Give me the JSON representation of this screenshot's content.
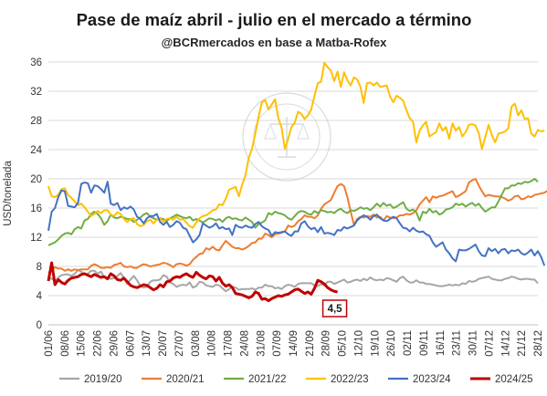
{
  "chart_data": {
    "type": "line",
    "title": "Pase de maíz abril - julio en el mercado a término",
    "subtitle": "@BCRmercados en base a Matba-Rofex",
    "ylabel": "USD/tonelada",
    "xlabel": "",
    "ylim": [
      0,
      36
    ],
    "yticks": [
      0,
      4,
      8,
      12,
      16,
      20,
      24,
      28,
      32,
      36
    ],
    "grid": "horizontal",
    "legend": "bottom",
    "x_ticks": [
      "01/06",
      "08/06",
      "15/06",
      "22/06",
      "29/06",
      "06/07",
      "13/07",
      "20/07",
      "27/07",
      "03/08",
      "10/08",
      "17/08",
      "24/08",
      "31/08",
      "07/09",
      "14/09",
      "21/09",
      "28/09",
      "05/10",
      "12/10",
      "19/10",
      "26/10",
      "02/11",
      "09/11",
      "16/11",
      "23/11",
      "30/11",
      "07/12",
      "14/12",
      "21/12",
      "28/12"
    ],
    "annotation": {
      "label": "4,5",
      "x": "07/09",
      "y": 4.5,
      "color": "#c00000"
    },
    "series": [
      {
        "name": "2019/20",
        "color": "#a6a6a6",
        "width": 2,
        "values": [
          6.5,
          6.3,
          6,
          6.5,
          6.8,
          6.9,
          6.9,
          6.7,
          7,
          7.5,
          7.3,
          6.9,
          7,
          7.4,
          7.4,
          7,
          7.3,
          6.5,
          6.4,
          6.3,
          6.4,
          6.7,
          7.1,
          6.4,
          5.6,
          6.2,
          6.7,
          6.1,
          5.3,
          5.1,
          5.2,
          5.9,
          6.1,
          6.1,
          6.2,
          6.8,
          6.6,
          5.8,
          5.6,
          5.2,
          5.4,
          5.5,
          5.4,
          5.8,
          5.1,
          5.3,
          5.9,
          5.8,
          5.4,
          5.3,
          5.2,
          5.5,
          5.4,
          5,
          4.6,
          4.9,
          5.2,
          5.1,
          4.8,
          4.9,
          4.9,
          4.9,
          5,
          4.8,
          5.1,
          5.1,
          5.5,
          5.3,
          5.3,
          5,
          5.1,
          4.9,
          5.3,
          5.5,
          5.4,
          5.2,
          5.6,
          5.7,
          5.7,
          5.7,
          5.7,
          5.4,
          5.3,
          5.6,
          5.4,
          5.9,
          5.9,
          5.6,
          5.8,
          6,
          6.2,
          5.8,
          5.9,
          6.1,
          6.2,
          6,
          6.3,
          6.1,
          6.5,
          6.2,
          6.1,
          6.2,
          6.1,
          6.4,
          6.3,
          6.1,
          5.9,
          6.4,
          6.6,
          6.1,
          5.8,
          5.8,
          6.1,
          5.8,
          5.8,
          5.6,
          5.6,
          5.5,
          5.4,
          5.3,
          5.3,
          5.4,
          5.5,
          5.4,
          5.5,
          5.4,
          5.7,
          5.6,
          6,
          5.9,
          6,
          6.3,
          6.4,
          6.5,
          6.6,
          6.3,
          6.2,
          6.1,
          6.1,
          6.3,
          6.4,
          6.6,
          6.5,
          6.3,
          6.2,
          6.3,
          6.3,
          6.2,
          6.2,
          5.7
        ]
      },
      {
        "name": "2020/21",
        "color": "#ed7d31",
        "width": 2,
        "values": [
          7.1,
          7.5,
          7.9,
          7.7,
          7.7,
          7.4,
          7.6,
          7.4,
          7.6,
          7.5,
          7.6,
          7.6,
          7.6,
          8.1,
          8.3,
          8.1,
          7.8,
          7.8,
          7.9,
          7.8,
          8.2,
          8.3,
          8.5,
          8,
          7.9,
          8,
          7.8,
          7.8,
          8.1,
          8.3,
          8.2,
          8,
          8.1,
          8.2,
          8.3,
          8.5,
          8.4,
          8.2,
          7.9,
          8.3,
          8.4,
          8.3,
          8.1,
          8.3,
          8.9,
          9.3,
          9.7,
          9.8,
          10.5,
          10.3,
          10.7,
          10.3,
          10.2,
          10.9,
          11.5,
          11.1,
          10.7,
          10.5,
          10.5,
          10.3,
          10.5,
          10.8,
          11.2,
          11.3,
          11.8,
          11.8,
          12.5,
          12.3,
          12,
          12.4,
          12.5,
          12.6,
          12.8,
          13.6,
          13.4,
          13.6,
          14.2,
          14.5,
          15,
          14.8,
          14.8,
          14.6,
          15,
          15.9,
          16.5,
          16.8,
          17.1,
          18.1,
          19,
          19.3,
          19,
          17.5,
          15.5,
          13.7,
          14.5,
          14.8,
          14.7,
          14.9,
          14.8,
          15.1,
          14.7,
          14.8,
          14.3,
          14.9,
          14.7,
          14.6,
          14.7,
          15,
          15,
          15.2,
          15.1,
          15.3,
          15.7,
          16.5,
          17,
          17.5,
          16.8,
          17.6,
          17.4,
          17.6,
          17.7,
          17.9,
          18.1,
          18.3,
          17.5,
          17.7,
          18,
          18.3,
          19.5,
          19.8,
          20,
          19.1,
          18.3,
          17.6,
          17.8,
          17.7,
          17.6,
          17.6,
          17.5,
          17.3,
          17,
          17.2,
          17.6,
          17.7,
          17.2,
          17.3,
          17.6,
          17.5,
          17.8,
          17.9,
          18,
          18.1,
          18.4,
          18.2
        ]
      },
      {
        "name": "2021/22",
        "color": "#70ad47",
        "width": 2,
        "values": [
          10.9,
          11.1,
          11.3,
          11.7,
          12.2,
          12.5,
          12.6,
          12.4,
          13.1,
          13.4,
          13.2,
          14.3,
          14.5,
          15.2,
          15.5,
          15.2,
          14.6,
          13.7,
          14.2,
          15.1,
          14.7,
          14.6,
          14.8,
          14.7,
          14.5,
          14.5,
          14.1,
          14.4,
          14.7,
          15.1,
          15.3,
          14.8,
          14.6,
          14.4,
          14.6,
          14.5,
          14.2,
          14.6,
          14.8,
          15.1,
          14.9,
          14.7,
          14.6,
          14.8,
          14.3,
          14.5,
          14.3,
          14,
          14.3,
          14.6,
          14.5,
          14.3,
          14.5,
          14.1,
          14.6,
          14.8,
          14.5,
          14.6,
          14.4,
          14.3,
          14.7,
          14.4,
          14.1,
          13.3,
          13.8,
          14,
          14.3,
          15.3,
          15.1,
          15.5,
          15.3,
          15.2,
          15,
          14.6,
          14.4,
          14.9,
          15.4,
          15.6,
          15.5,
          15.2,
          15.1,
          15.6,
          15.3,
          15.7,
          15.6,
          15.4,
          15.5,
          15.3,
          15.7,
          15.9,
          15.5,
          15.3,
          15.7,
          15.6,
          15.8,
          16.1,
          15.9,
          16,
          15.7,
          16.1,
          16.6,
          16.2,
          16.7,
          16.3,
          16.5,
          16,
          16.2,
          16.5,
          16.8,
          15.9,
          15.6,
          15.8,
          15.4,
          14.3,
          15.5,
          15.3,
          15.9,
          15.4,
          15.6,
          15.1,
          15.3,
          15.8,
          15.9,
          16.1,
          16.6,
          16.4,
          16.6,
          16.2,
          16.5,
          16.7,
          16.3,
          16.6,
          16,
          15.5,
          15.8,
          16.1,
          16.1,
          16.9,
          17.8,
          18.7,
          18.7,
          19.1,
          19.1,
          19.4,
          19.3,
          19.6,
          19.5,
          19.7,
          20,
          19.6
        ]
      },
      {
        "name": "2022/23",
        "color": "#ffc000",
        "width": 2,
        "values": [
          19,
          17.6,
          17.5,
          17.8,
          18.6,
          18.7,
          17.8,
          17.4,
          16.9,
          16.4,
          16.6,
          16.1,
          15.5,
          14.9,
          15.2,
          15.6,
          15.3,
          15.7,
          15.7,
          15.1,
          14.9,
          15.4,
          15.2,
          14.5,
          14.1,
          14.5,
          14.6,
          13.8,
          13.5,
          13.7,
          14.2,
          14.4,
          13.9,
          14.4,
          14.6,
          14.1,
          14.5,
          14.6,
          14.4,
          14.8,
          14.4,
          14.5,
          14,
          13.5,
          13.3,
          14,
          14.6,
          14.9,
          15,
          15.3,
          15.7,
          15.8,
          16.5,
          16.4,
          17.3,
          18.5,
          18.7,
          18.9,
          17.6,
          19.2,
          20.5,
          22.9,
          24.1,
          26.2,
          28.5,
          30.5,
          30.8,
          29.5,
          30.2,
          30.9,
          28.3,
          27,
          24.1,
          25.5,
          27.1,
          27.7,
          29.2,
          28.9,
          28.2,
          28.7,
          29.5,
          31.4,
          33.1,
          33.3,
          35.9,
          35.3,
          34.8,
          33.4,
          34.7,
          32.6,
          34.6,
          33.5,
          32.8,
          33.9,
          33.6,
          32.6,
          30.4,
          33.1,
          33.2,
          32.8,
          33.2,
          32.6,
          32.7,
          32.8,
          31.3,
          30.5,
          31.4,
          31.1,
          30.7,
          29.4,
          28.3,
          27.8,
          25,
          26.6,
          27.3,
          27.8,
          25.8,
          26.1,
          26.4,
          27.6,
          26.6,
          27.1,
          25.5,
          27.6,
          26.6,
          27.1,
          25.8,
          26.4,
          27.4,
          27.5,
          27.3,
          26.3,
          24.1,
          25.7,
          27.4,
          26,
          25,
          26.2,
          26.3,
          26.5,
          26.9,
          29.9,
          30.3,
          28.7,
          29.4,
          28.2,
          28.3,
          26.2,
          25.8,
          26.7,
          26.5,
          26.6
        ]
      },
      {
        "name": "2023/24",
        "color": "#4472c4",
        "width": 2,
        "values": [
          12.9,
          15.5,
          16,
          17.5,
          18.4,
          18.3,
          16.3,
          16.2,
          16.1,
          16.7,
          19.3,
          19.5,
          19.4,
          18.1,
          19.1,
          19,
          18.6,
          18.1,
          19.6,
          16.6,
          16.4,
          16.7,
          15.7,
          16.1,
          15.9,
          16.2,
          15.8,
          14.8,
          14.5,
          13.9,
          14.6,
          14.9,
          14.9,
          15.2,
          14.1,
          13.7,
          14.1,
          13.4,
          13.7,
          14.2,
          14,
          13.3,
          13.1,
          12.2,
          11.3,
          11.7,
          12.3,
          13.9,
          13.6,
          13.3,
          13.5,
          13.9,
          13.2,
          13.4,
          13.1,
          13.2,
          12.3,
          13.7,
          13.4,
          13.3,
          13.6,
          13.4,
          13.3,
          13.8,
          14.1,
          13.5,
          13.2,
          13,
          12.2,
          12.7,
          12.6,
          12.7,
          12.8,
          12.4,
          12.2,
          12.8,
          12.8,
          13.9,
          14.2,
          13.5,
          13.1,
          13.3,
          12.7,
          13.4,
          12.5,
          12.6,
          12.5,
          12.3,
          13,
          12.9,
          13.4,
          13.2,
          13.4,
          13.6,
          14.3,
          14.7,
          15,
          14.8,
          14.4,
          14.9,
          15.1,
          14.6,
          14.3,
          14.2,
          14.5,
          14.8,
          14.6,
          13.9,
          13.3,
          13.2,
          12.8,
          13.3,
          12.9,
          12.7,
          12.8,
          12.4,
          12.2,
          11.3,
          10.7,
          11,
          11.3,
          10.3,
          9.8,
          9.1,
          8.7,
          10.3,
          10.2,
          10.2,
          10.4,
          10.7,
          11,
          10.1,
          9.5,
          9.4,
          10.5,
          10.1,
          10.4,
          9.8,
          10.3,
          10.4,
          9.8,
          10.2,
          10.1,
          10.3,
          9.8,
          9.6,
          9.9,
          10.3,
          9.5,
          10.1,
          9.3,
          8.1
        ]
      },
      {
        "name": "2024/25",
        "color": "#c00000",
        "width": 3,
        "values": [
          6,
          8.5,
          5.5,
          6.2,
          5.8,
          5.6,
          6.1,
          6.4,
          6.5,
          6.6,
          6.9,
          7,
          6.8,
          6.6,
          6.9,
          6.7,
          6.5,
          6.6,
          6.3,
          7,
          6.7,
          6.2,
          6.1,
          6.4,
          5.9,
          5.4,
          5.2,
          5.1,
          5.3,
          5.5,
          5.4,
          5.1,
          4.8,
          5,
          5.5,
          5.2,
          5.9,
          6,
          6.4,
          6.6,
          6.5,
          6.8,
          7,
          6.7,
          6.5,
          7.2,
          6.8,
          6.5,
          6.3,
          6.7,
          6.6,
          6,
          6.5,
          5.7,
          5.3,
          5.5,
          5.1,
          4.3,
          4.2,
          4.1,
          3.9,
          3.7,
          3.9,
          4.5,
          4.3,
          3.5,
          3.6,
          3.3,
          3.6,
          3.8,
          4,
          3.9,
          4.1,
          4.2,
          4.5,
          4.8,
          4.9,
          4.6,
          4.3,
          4.5,
          4.2,
          5,
          6.1,
          5.9,
          5.6,
          5.1,
          4.8,
          4.6,
          4.5
        ]
      }
    ]
  }
}
